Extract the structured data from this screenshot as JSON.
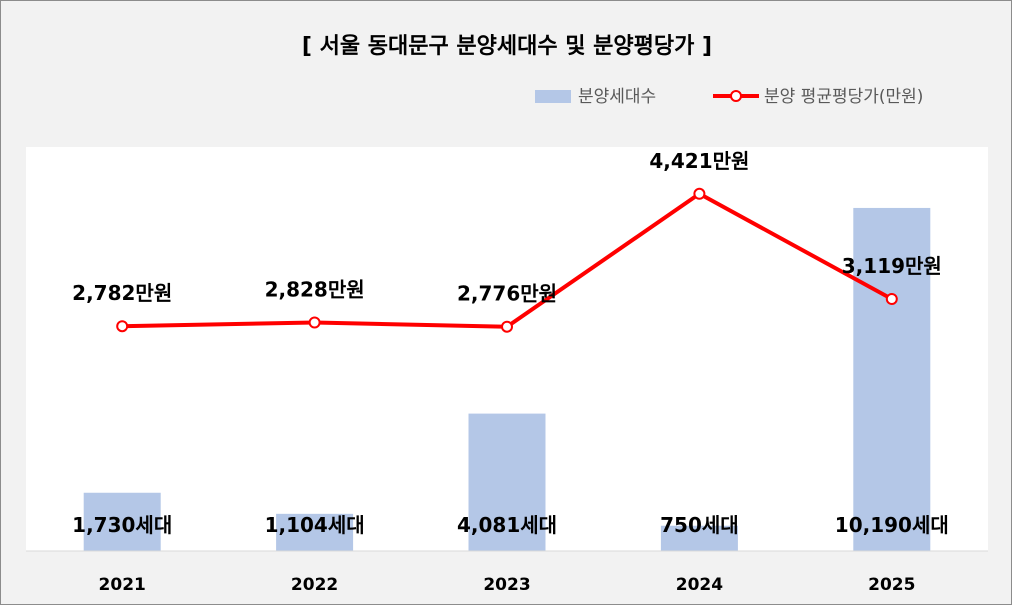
{
  "chart_data": {
    "type": "bar+line",
    "title": "[ 서울 동대문구 분양세대수 및 분양평당가 ]",
    "categories": [
      "2021",
      "2022",
      "2023",
      "2024",
      "2025"
    ],
    "series": [
      {
        "name": "분양세대수",
        "type": "bar",
        "color": "#b4c7e7",
        "values": [
          1730,
          1104,
          4081,
          750,
          10190
        ],
        "labels": [
          "1,730세대",
          "1,104세대",
          "4,081세대",
          "750세대",
          "10,190세대"
        ]
      },
      {
        "name": "분양 평균평당가(만원)",
        "type": "line",
        "color": "#ff0000",
        "values": [
          2782,
          2828,
          2776,
          4421,
          3119
        ],
        "labels": [
          "2,782만원",
          "2,828만원",
          "2,776만원",
          "4,421만원",
          "3,119만원"
        ]
      }
    ],
    "legend_position": "top-right",
    "grid": false,
    "y_left_range": [
      0,
      12000
    ],
    "y_right_range": [
      0,
      5000
    ]
  }
}
